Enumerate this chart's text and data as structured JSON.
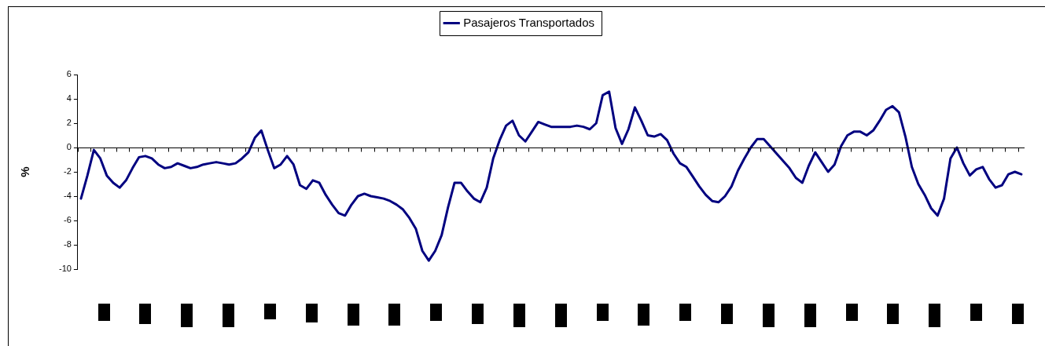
{
  "chart_data": {
    "type": "line",
    "ylabel": "%",
    "categories": [
      null,
      null,
      null,
      null,
      null,
      null,
      null,
      null,
      null,
      null,
      null,
      null,
      null,
      null,
      null,
      null,
      null,
      null,
      null,
      null,
      null,
      null,
      null,
      null,
      null,
      null,
      null,
      null,
      null,
      null,
      null,
      null,
      null,
      null,
      null,
      null,
      null,
      null,
      null,
      null,
      null,
      null,
      null,
      null,
      null,
      null,
      null,
      null,
      null,
      null,
      null,
      null,
      null,
      null,
      null,
      null,
      null,
      null,
      null,
      null,
      null,
      null,
      null,
      null,
      null,
      null,
      null,
      null,
      null,
      null,
      null,
      null,
      null,
      null,
      null,
      null,
      null,
      null,
      null,
      null,
      null,
      null,
      null,
      null,
      null,
      null,
      null,
      null,
      null,
      null,
      null,
      null,
      null,
      null,
      null,
      null,
      null,
      null,
      null,
      null,
      null,
      null,
      null,
      null,
      null,
      null,
      null,
      null,
      null,
      null,
      null,
      null,
      null,
      null,
      null,
      null,
      null,
      null,
      null,
      null,
      null,
      null,
      null,
      null,
      null,
      null,
      null,
      null,
      null,
      null,
      null,
      null,
      null,
      null,
      null,
      null,
      null,
      null,
      null,
      null,
      null,
      null,
      null,
      null,
      null,
      null,
      null
    ],
    "series": [
      {
        "name": "Pasajeros Transportados",
        "color": "#000080",
        "values": [
          -4.2,
          -2.3,
          -0.2,
          -0.9,
          -2.3,
          -2.9,
          -3.3,
          -2.7,
          -1.7,
          -0.8,
          -0.7,
          -0.9,
          -1.4,
          -1.7,
          -1.6,
          -1.3,
          -1.5,
          -1.7,
          -1.6,
          -1.4,
          -1.3,
          -1.2,
          -1.3,
          -1.4,
          -1.3,
          -0.9,
          -0.4,
          0.8,
          1.4,
          -0.2,
          -1.7,
          -1.4,
          -0.7,
          -1.4,
          -3.1,
          -3.4,
          -2.7,
          -2.9,
          -3.9,
          -4.7,
          -5.4,
          -5.6,
          -4.7,
          -4.0,
          -3.8,
          -4.0,
          -4.1,
          -4.2,
          -4.4,
          -4.7,
          -5.1,
          -5.8,
          -6.7,
          -8.5,
          -9.3,
          -8.5,
          -7.2,
          -4.9,
          -2.9,
          -2.9,
          -3.6,
          -4.2,
          -4.5,
          -3.3,
          -0.9,
          0.6,
          1.8,
          2.2,
          1.0,
          0.5,
          1.3,
          2.1,
          1.9,
          1.7,
          1.7,
          1.7,
          1.7,
          1.8,
          1.7,
          1.5,
          2.0,
          4.3,
          4.6,
          1.6,
          0.3,
          1.5,
          3.3,
          2.2,
          1.0,
          0.9,
          1.1,
          0.6,
          -0.5,
          -1.3,
          -1.6,
          -2.4,
          -3.2,
          -3.9,
          -4.4,
          -4.5,
          -4.0,
          -3.2,
          -1.9,
          -0.9,
          0.0,
          0.7,
          0.7,
          0.1,
          -0.5,
          -1.1,
          -1.7,
          -2.5,
          -2.9,
          -1.5,
          -0.4,
          -1.2,
          -2.0,
          -1.4,
          0.1,
          1.0,
          1.3,
          1.3,
          1.0,
          1.4,
          2.2,
          3.1,
          3.4,
          2.9,
          0.9,
          -1.6,
          -3.0,
          -3.9,
          -5.0,
          -5.6,
          -4.2,
          -0.9,
          0.0,
          -1.3,
          -2.3,
          -1.8,
          -1.6,
          -2.6,
          -3.3,
          -3.1,
          -2.2,
          -2.0,
          -2.2
        ]
      }
    ],
    "ylim": [
      -10,
      6
    ],
    "yticks": [
      -10,
      -8,
      -6,
      -4,
      -2,
      0,
      2,
      4,
      6
    ],
    "ref_lines": [
      {
        "axis": "y",
        "value": 0,
        "color": "#000000"
      }
    ],
    "grid": false,
    "legend": "top",
    "marker": "none",
    "line_style": "solid",
    "tick_labels": "y"
  }
}
